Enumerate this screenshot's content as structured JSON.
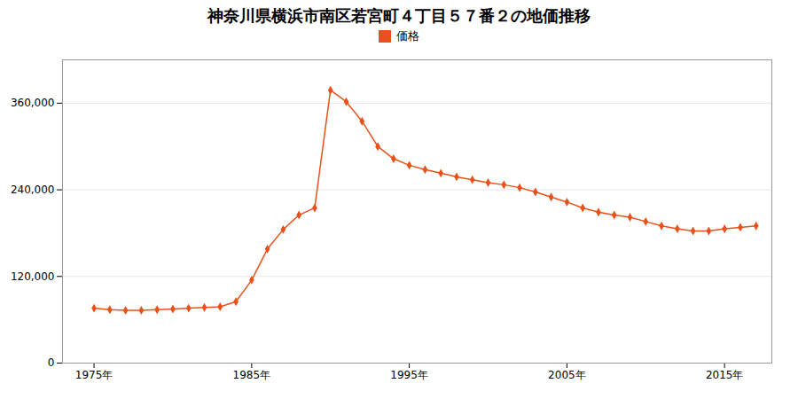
{
  "chart_data": {
    "type": "line",
    "title": "神奈川県横浜市南区若宮町４丁目５７番２の地価推移",
    "x": [
      1975,
      1976,
      1977,
      1978,
      1979,
      1980,
      1981,
      1982,
      1983,
      1984,
      1985,
      1986,
      1987,
      1988,
      1989,
      1990,
      1991,
      1992,
      1993,
      1994,
      1995,
      1996,
      1997,
      1998,
      1999,
      2000,
      2001,
      2002,
      2003,
      2004,
      2005,
      2006,
      2007,
      2008,
      2009,
      2010,
      2011,
      2012,
      2013,
      2014,
      2015,
      2016,
      2017
    ],
    "series": [
      {
        "name": "価格",
        "color": "#e8521a",
        "marker": "diamond",
        "values": [
          76000,
          74000,
          73000,
          73000,
          74000,
          75000,
          76000,
          77000,
          78000,
          85000,
          115000,
          158000,
          185000,
          205000,
          215000,
          378000,
          362000,
          335000,
          300000,
          283000,
          274000,
          268000,
          263000,
          258000,
          254000,
          250000,
          247000,
          243000,
          237000,
          230000,
          223000,
          215000,
          209000,
          205000,
          202000,
          196000,
          190000,
          186000,
          183000,
          183000,
          186000,
          188000,
          190000
        ]
      }
    ],
    "xlim": [
      1973,
      2018
    ],
    "xticks": [
      {
        "value": 1975,
        "label": "1975年"
      },
      {
        "value": 1985,
        "label": "1985年"
      },
      {
        "value": 1995,
        "label": "1995年"
      },
      {
        "value": 2005,
        "label": "2005年"
      },
      {
        "value": 2015,
        "label": "2015年"
      }
    ],
    "ylim": [
      0,
      420000
    ],
    "yticks": [
      0,
      {
        "value": 120000,
        "label": "120,000"
      },
      {
        "value": 240000,
        "label": "240,000"
      },
      {
        "value": 360000,
        "label": "360,000"
      }
    ],
    "grid": "y",
    "legend": "top"
  }
}
